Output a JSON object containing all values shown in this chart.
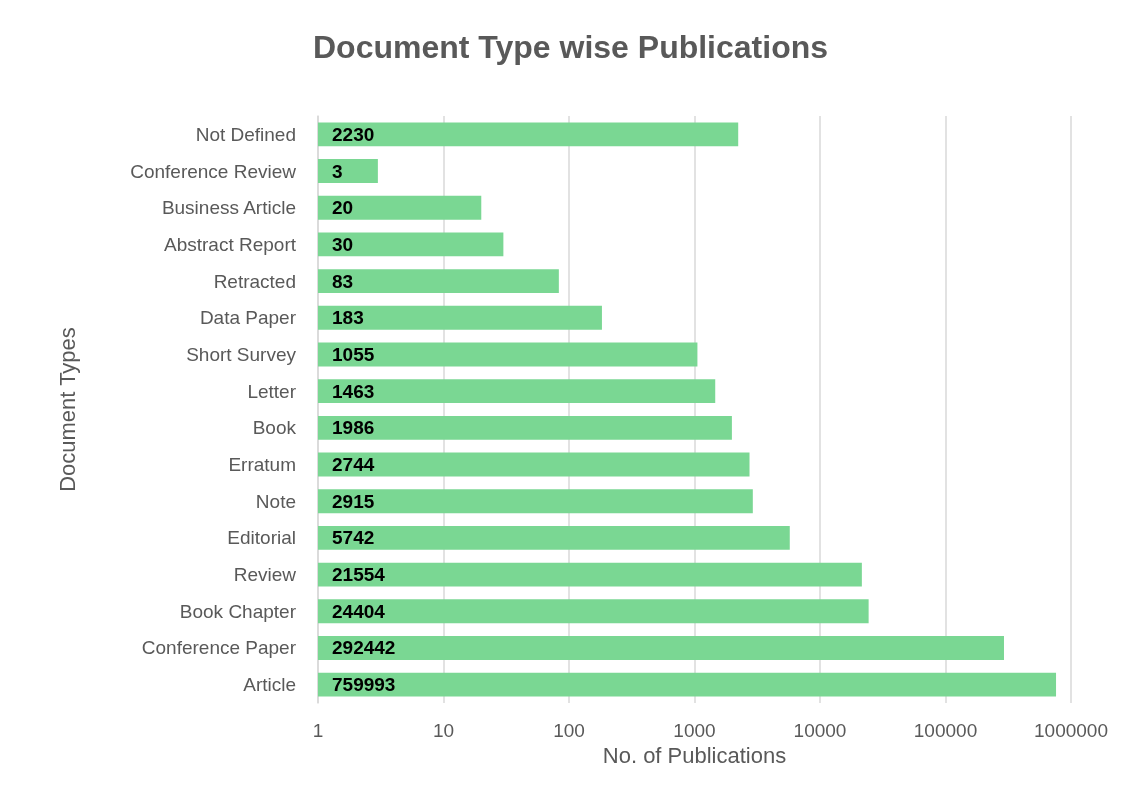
{
  "chart_data": {
    "type": "bar",
    "orientation": "horizontal",
    "title": "Document Type wise Publications",
    "xlabel": "No. of Publications",
    "ylabel": "Document Types",
    "categories": [
      "Not Defined",
      "Conference Review",
      "Business Article",
      "Abstract Report",
      "Retracted",
      "Data Paper",
      "Short Survey",
      "Letter",
      "Book",
      "Erratum",
      "Note",
      "Editorial",
      "Review",
      "Book Chapter",
      "Conference Paper",
      "Article"
    ],
    "values": [
      2230,
      3,
      20,
      30,
      83,
      183,
      1055,
      1463,
      1986,
      2744,
      2915,
      5742,
      21554,
      24404,
      292442,
      759993
    ],
    "color": "#7ad793",
    "log": "x",
    "xlim": [
      1,
      1000000
    ],
    "xticks": [
      1,
      10,
      100,
      1000,
      10000,
      100000,
      1000000
    ],
    "grid": "x",
    "data_labels": true
  }
}
